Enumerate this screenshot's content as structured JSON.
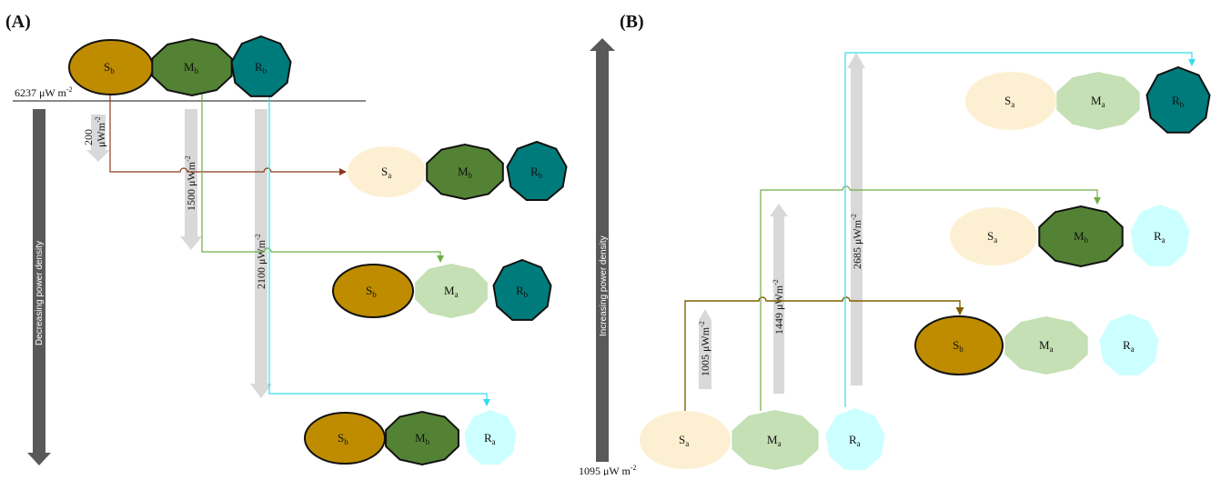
{
  "panel_a": {
    "label": "(A)",
    "threshold": "6237 μW m",
    "threshold_sup": "-2",
    "axis_label": "Decreasing power density",
    "arrow1": {
      "value": "200",
      "unit": "μWm",
      "sup": "-2"
    },
    "arrow2": {
      "value": "1500 μWm",
      "sup": "-2"
    },
    "arrow3": {
      "value": "2100 μWm",
      "sup": "-2"
    }
  },
  "panel_b": {
    "label": "(B)",
    "baseline": "1095 μW m",
    "baseline_sup": "-2",
    "axis_label": "Increasing power density",
    "arrow1": {
      "value": "1005 μWm",
      "sup": "-2"
    },
    "arrow2": {
      "value": "1449 μWm",
      "sup": "-2"
    },
    "arrow3": {
      "value": "2685 μWm",
      "sup": "-2"
    }
  },
  "nodes": {
    "S": "S",
    "M": "M",
    "R": "R",
    "sub_b": "b",
    "sub_a": "a"
  },
  "colors": {
    "s_b": "#bf8c00",
    "s_a": "#fdf0d2",
    "m_b": "#548235",
    "m_a": "#c5e0b4",
    "r_b": "#007b7b",
    "r_a": "#ccffff",
    "s_line": "#8b3a1e",
    "m_line": "#70ad47",
    "r_line": "#33ddee",
    "s_line_b": "#7f6000",
    "gray_arrow": "#595959",
    "light_arrow": "#d9d9d9"
  }
}
